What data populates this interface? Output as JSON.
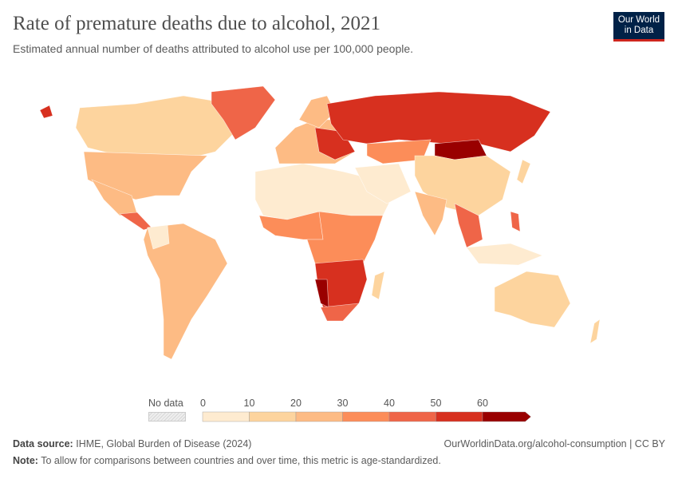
{
  "header": {
    "title": "Rate of premature deaths due to alcohol, 2021",
    "subtitle": "Estimated annual number of deaths attributed to alcohol use per 100,000 people.",
    "logo": "Our World in Data"
  },
  "legend": {
    "no_data_label": "No data",
    "ticks": [
      "0",
      "10",
      "20",
      "30",
      "40",
      "50",
      "60"
    ],
    "colors": [
      "#feebd0",
      "#fdd49e",
      "#fdbb84",
      "#fc8d59",
      "#ef6548",
      "#d7301f",
      "#990000"
    ],
    "no_data_color": "#e0e0e0"
  },
  "footer": {
    "source_label": "Data source:",
    "source": "IHME, Global Burden of Disease (2024)",
    "url": "OurWorldinData.org/alcohol-consumption | CC BY",
    "note_label": "Note:",
    "note": "To allow for comparisons between countries and over time, this metric is age-standardized."
  }
}
